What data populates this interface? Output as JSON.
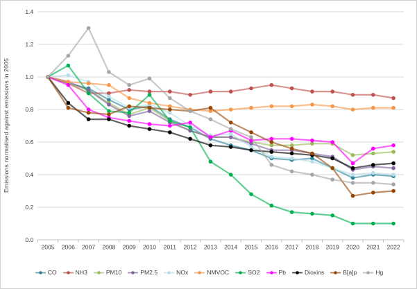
{
  "figure": {
    "y_axis_title": "Emissions normalised against emissions in 2005"
  },
  "chart_data": {
    "type": "line",
    "title": "",
    "xlabel": "",
    "ylabel": "Emissions normalised against emissions in 2005",
    "x": [
      2005,
      2006,
      2007,
      2008,
      2009,
      2010,
      2011,
      2012,
      2013,
      2014,
      2015,
      2016,
      2017,
      2018,
      2019,
      2020,
      2021,
      2022
    ],
    "ylim": [
      0,
      1.4
    ],
    "y_ticks": [
      "0.0",
      "0.2",
      "0.4",
      "0.6",
      "0.8",
      "1.0",
      "1.2",
      "1.4"
    ],
    "grid": "horizontal",
    "legend_position": "bottom",
    "axis_color": "#bfbfbf",
    "gridline_color": "#d9d9d9",
    "tick_label_color": "#3f3f3f",
    "series": [
      {
        "name": "CO",
        "color": "#31849b",
        "values": [
          1.0,
          0.96,
          0.93,
          0.86,
          0.8,
          0.82,
          0.74,
          0.69,
          0.62,
          0.58,
          0.55,
          0.5,
          0.49,
          0.5,
          0.44,
          0.38,
          0.4,
          0.39
        ]
      },
      {
        "name": "NH3",
        "color": "#c0504d",
        "values": [
          1.0,
          0.96,
          0.9,
          0.9,
          0.92,
          0.91,
          0.91,
          0.89,
          0.91,
          0.91,
          0.93,
          0.95,
          0.93,
          0.91,
          0.91,
          0.89,
          0.89,
          0.87
        ]
      },
      {
        "name": "PM10",
        "color": "#9bbb59",
        "values": [
          1.0,
          0.96,
          0.92,
          0.84,
          0.77,
          0.81,
          0.73,
          0.67,
          0.63,
          0.63,
          0.6,
          0.58,
          0.58,
          0.59,
          0.59,
          0.52,
          0.53,
          0.54
        ]
      },
      {
        "name": "PM2.5",
        "color": "#8064a2",
        "values": [
          1.0,
          0.97,
          0.92,
          0.83,
          0.76,
          0.79,
          0.72,
          0.67,
          0.63,
          0.63,
          0.59,
          0.55,
          0.55,
          0.53,
          0.51,
          0.43,
          0.45,
          0.44
        ]
      },
      {
        "name": "NOx",
        "color": "#b7dee8",
        "values": [
          1.0,
          1.01,
          0.97,
          0.88,
          0.81,
          0.83,
          0.78,
          0.7,
          0.64,
          0.65,
          0.57,
          0.51,
          0.5,
          0.48,
          0.44,
          0.4,
          0.41,
          0.4
        ]
      },
      {
        "name": "NMVOC",
        "color": "#f79646",
        "values": [
          1.0,
          0.97,
          0.96,
          0.95,
          0.87,
          0.84,
          0.82,
          0.8,
          0.79,
          0.8,
          0.81,
          0.82,
          0.82,
          0.83,
          0.82,
          0.8,
          0.81,
          0.81
        ]
      },
      {
        "name": "SO2",
        "color": "#00b050",
        "values": [
          1.0,
          1.07,
          0.9,
          0.79,
          0.78,
          0.89,
          0.73,
          0.69,
          0.48,
          0.4,
          0.28,
          0.21,
          0.17,
          0.16,
          0.15,
          0.1,
          0.1,
          0.1
        ]
      },
      {
        "name": "Pb",
        "color": "#ff00ff",
        "values": [
          1.0,
          0.95,
          0.8,
          0.75,
          0.73,
          0.71,
          0.7,
          0.72,
          0.63,
          0.67,
          0.61,
          0.62,
          0.62,
          0.61,
          0.6,
          0.47,
          0.56,
          0.58
        ]
      },
      {
        "name": "Dioxins",
        "color": "#000000",
        "values": [
          1.0,
          0.84,
          0.74,
          0.74,
          0.7,
          0.68,
          0.66,
          0.62,
          0.58,
          0.57,
          0.55,
          0.54,
          0.53,
          0.52,
          0.5,
          0.44,
          0.46,
          0.47
        ]
      },
      {
        "name": "B[a]p",
        "color": "#974706",
        "values": [
          1.0,
          0.81,
          0.78,
          0.77,
          0.82,
          0.81,
          0.8,
          0.79,
          0.81,
          0.72,
          0.66,
          0.6,
          0.56,
          0.53,
          0.44,
          0.27,
          0.29,
          0.3
        ]
      },
      {
        "name": "Hg",
        "color": "#a6a6a6",
        "values": [
          1.0,
          1.13,
          1.3,
          1.03,
          0.95,
          0.99,
          0.87,
          0.79,
          0.74,
          0.68,
          0.63,
          0.46,
          0.42,
          0.4,
          0.37,
          0.35,
          0.35,
          0.34
        ]
      }
    ]
  }
}
